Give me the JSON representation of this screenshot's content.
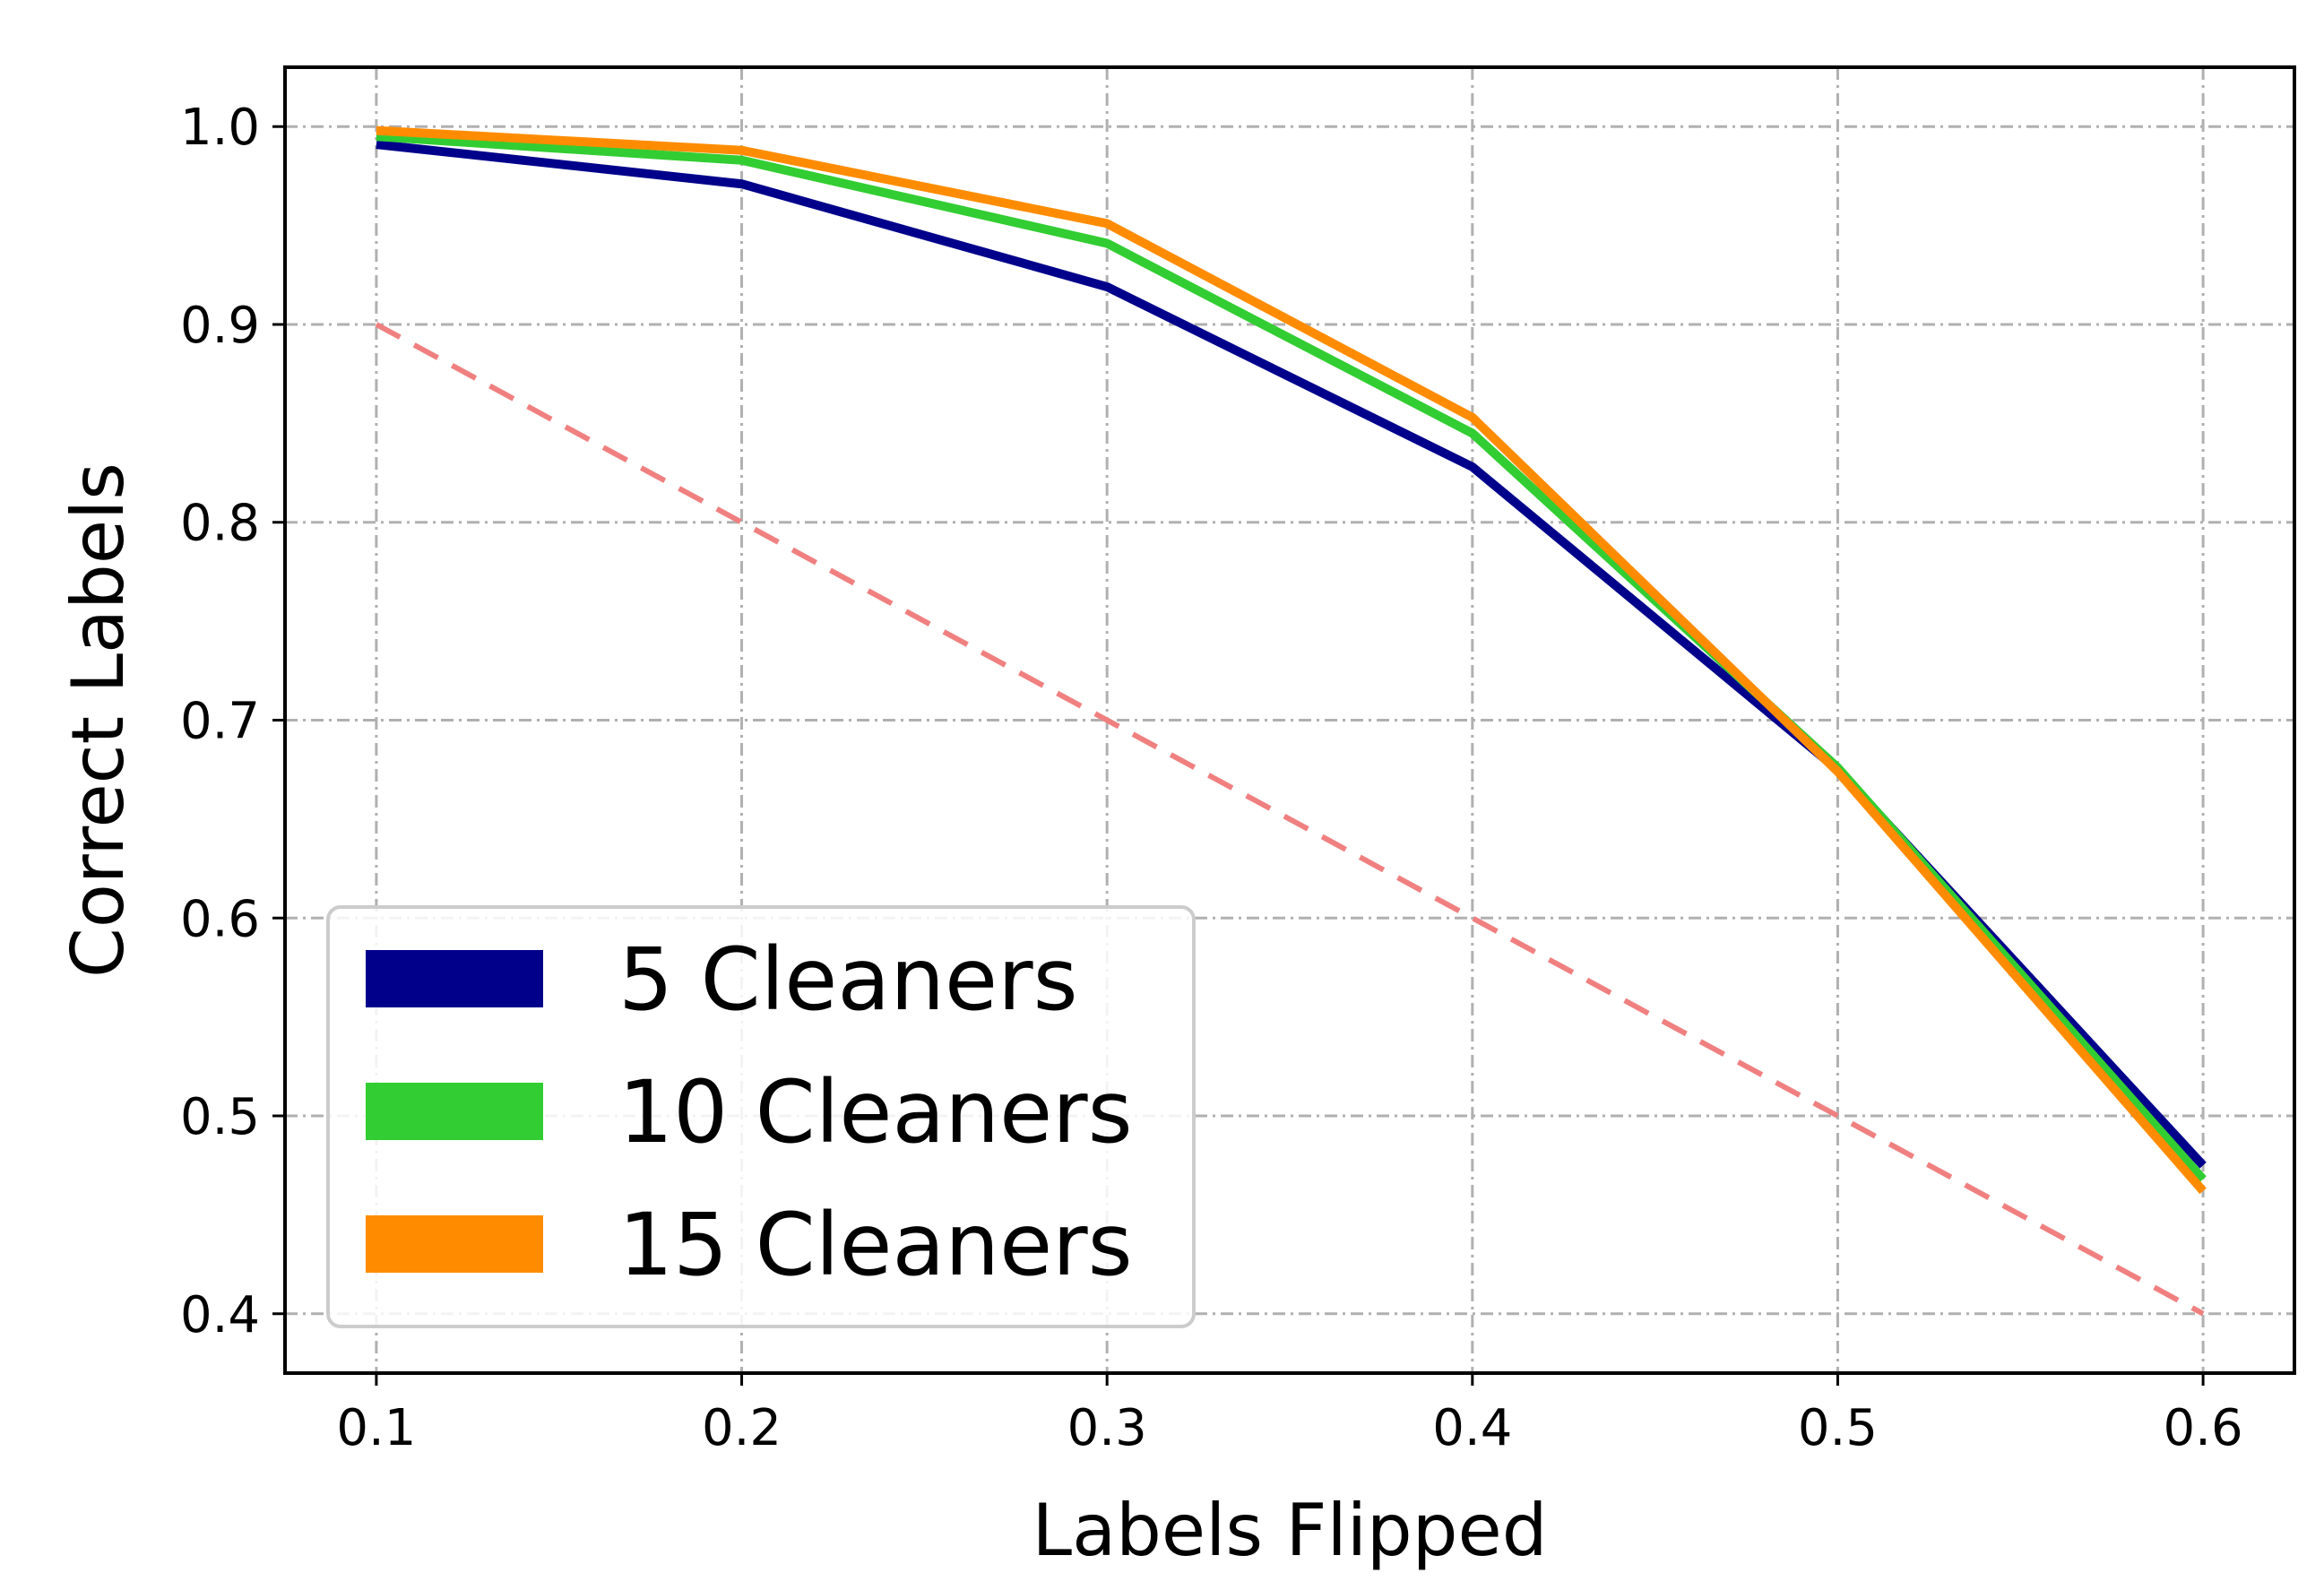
{
  "chart_data": {
    "type": "line",
    "title": "",
    "xlabel": "Labels Flipped",
    "ylabel": "Correct Labels",
    "xlim": [
      0.075,
      0.625
    ],
    "ylim": [
      0.37,
      1.03
    ],
    "x_ticks": [
      "0.1",
      "0.2",
      "0.3",
      "0.4",
      "0.5",
      "0.6"
    ],
    "y_ticks": [
      "0.4",
      "0.5",
      "0.6",
      "0.7",
      "0.8",
      "0.9",
      "1.0"
    ],
    "grid": true,
    "legend_position": "lower-left",
    "x": [
      0.1,
      0.2,
      0.3,
      0.4,
      0.5,
      0.6
    ],
    "series": [
      {
        "name": "5 Cleaners",
        "color": "#00008b",
        "values": [
          0.991,
          0.971,
          0.919,
          0.828,
          0.675,
          0.475
        ]
      },
      {
        "name": "10 Cleaners",
        "color": "#32cd32",
        "values": [
          0.995,
          0.983,
          0.941,
          0.845,
          0.676,
          0.468
        ]
      },
      {
        "name": "15 Cleaners",
        "color": "#ff8c00",
        "values": [
          0.998,
          0.988,
          0.951,
          0.853,
          0.674,
          0.462
        ]
      }
    ],
    "reference_line": {
      "style": "dashed",
      "color": "#f08080",
      "x": [
        0.1,
        0.6
      ],
      "values": [
        0.9,
        0.4
      ]
    }
  }
}
